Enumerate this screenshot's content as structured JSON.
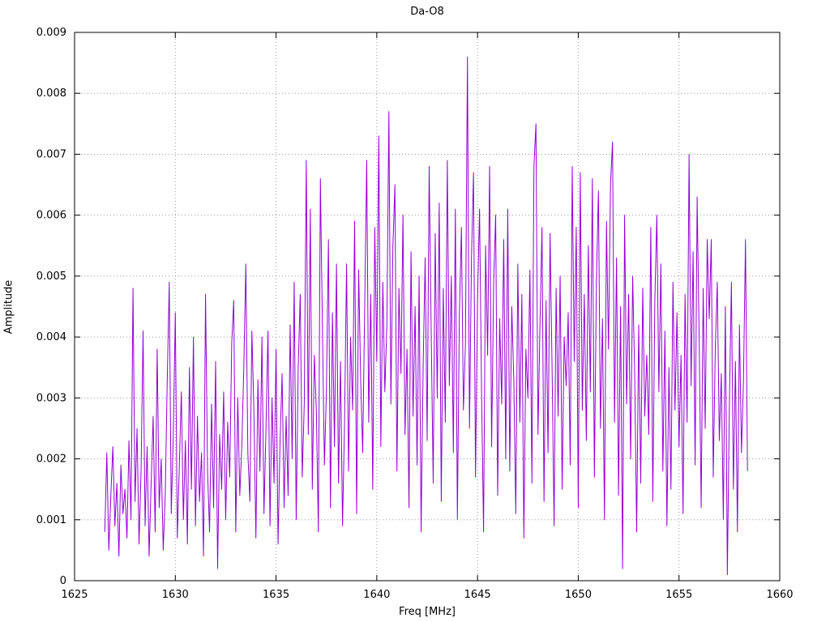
{
  "chart_data": {
    "type": "line",
    "title": "Da-O8",
    "xlabel": "Freq [MHz]",
    "ylabel": "Amplitude",
    "xlim": [
      1625,
      1660
    ],
    "ylim": [
      0,
      0.009
    ],
    "x_ticks": [
      1625,
      1630,
      1635,
      1640,
      1645,
      1650,
      1655,
      1660
    ],
    "x_tick_labels": [
      "1625",
      "1630",
      "1635",
      "1640",
      "1645",
      "1650",
      "1655",
      "1660"
    ],
    "y_ticks": [
      0,
      0.001,
      0.002,
      0.003,
      0.004,
      0.005,
      0.006,
      0.007,
      0.008,
      0.009
    ],
    "y_tick_labels": [
      "0",
      "0.001",
      "0.002",
      "0.003",
      "0.004",
      "0.005",
      "0.006",
      "0.007",
      "0.008",
      "0.009"
    ],
    "grid": true,
    "grid_color": "#9a9a9a",
    "legend_position": "none",
    "series": [
      {
        "name": "Da-O8",
        "color": "#9400D3",
        "x_start": 1626.5,
        "x_step": 0.1,
        "values": [
          0.0008,
          0.0021,
          0.0005,
          0.0014,
          0.0022,
          0.0009,
          0.0016,
          0.0004,
          0.0019,
          0.0011,
          0.0015,
          0.0007,
          0.0023,
          0.001,
          0.0048,
          0.0013,
          0.0025,
          0.0006,
          0.0018,
          0.0041,
          0.0009,
          0.0022,
          0.0004,
          0.0016,
          0.0027,
          0.0008,
          0.0038,
          0.0012,
          0.002,
          0.0005,
          0.0014,
          0.0033,
          0.0049,
          0.0011,
          0.0024,
          0.0044,
          0.0007,
          0.0019,
          0.0031,
          0.001,
          0.0023,
          0.0006,
          0.0035,
          0.0015,
          0.004,
          0.0009,
          0.0027,
          0.0013,
          0.0021,
          0.0004,
          0.0047,
          0.0018,
          0.0008,
          0.0029,
          0.0012,
          0.0036,
          0.0002,
          0.0024,
          0.0015,
          0.0031,
          0.001,
          0.0026,
          0.0017,
          0.0039,
          0.0046,
          0.0008,
          0.003,
          0.0014,
          0.0022,
          0.0035,
          0.0052,
          0.0021,
          0.0013,
          0.0041,
          0.0028,
          0.0007,
          0.0033,
          0.0018,
          0.004,
          0.0011,
          0.0025,
          0.0041,
          0.0009,
          0.003,
          0.0016,
          0.0038,
          0.0006,
          0.0023,
          0.0034,
          0.0012,
          0.0027,
          0.0014,
          0.0042,
          0.002,
          0.0049,
          0.001,
          0.0035,
          0.0047,
          0.0017,
          0.0029,
          0.0069,
          0.0024,
          0.0061,
          0.0015,
          0.0037,
          0.0028,
          0.0008,
          0.0066,
          0.0042,
          0.0019,
          0.0031,
          0.0056,
          0.0012,
          0.0044,
          0.0022,
          0.0052,
          0.0016,
          0.0036,
          0.0009,
          0.0026,
          0.0052,
          0.0018,
          0.004,
          0.0028,
          0.0059,
          0.0011,
          0.0051,
          0.0033,
          0.0021,
          0.0045,
          0.0069,
          0.0026,
          0.0047,
          0.0015,
          0.0058,
          0.0036,
          0.0073,
          0.0022,
          0.0049,
          0.0031,
          0.0042,
          0.0077,
          0.0029,
          0.0055,
          0.0065,
          0.0018,
          0.0048,
          0.0034,
          0.006,
          0.0024,
          0.0038,
          0.0012,
          0.0054,
          0.0027,
          0.0045,
          0.0019,
          0.005,
          0.0008,
          0.0035,
          0.0053,
          0.0023,
          0.0068,
          0.0041,
          0.0016,
          0.0057,
          0.003,
          0.0062,
          0.0013,
          0.0048,
          0.0026,
          0.0069,
          0.0032,
          0.005,
          0.0021,
          0.0061,
          0.001,
          0.0044,
          0.0058,
          0.0028,
          0.0039,
          0.0086,
          0.0025,
          0.0053,
          0.0067,
          0.0017,
          0.0046,
          0.0061,
          0.0031,
          0.0008,
          0.0055,
          0.0037,
          0.0068,
          0.0022,
          0.0049,
          0.006,
          0.0014,
          0.0043,
          0.0029,
          0.0056,
          0.002,
          0.0061,
          0.0018,
          0.0045,
          0.0033,
          0.0011,
          0.0052,
          0.0026,
          0.0047,
          0.0007,
          0.0038,
          0.003,
          0.0051,
          0.0016,
          0.0068,
          0.0075,
          0.0024,
          0.0042,
          0.0058,
          0.0013,
          0.0046,
          0.0021,
          0.0057,
          0.0035,
          0.0009,
          0.0048,
          0.0027,
          0.005,
          0.0015,
          0.004,
          0.0032,
          0.0044,
          0.0019,
          0.0068,
          0.0036,
          0.0058,
          0.0012,
          0.0067,
          0.0028,
          0.0047,
          0.0023,
          0.0055,
          0.0031,
          0.0066,
          0.0017,
          0.0049,
          0.0064,
          0.0025,
          0.0043,
          0.001,
          0.0059,
          0.0038,
          0.0065,
          0.0072,
          0.0026,
          0.0053,
          0.0014,
          0.0045,
          0.0002,
          0.006,
          0.0029,
          0.0047,
          0.002,
          0.005,
          0.0034,
          0.0008,
          0.0042,
          0.0016,
          0.0048,
          0.0027,
          0.0037,
          0.0024,
          0.0058,
          0.0013,
          0.0046,
          0.006,
          0.0031,
          0.0052,
          0.0018,
          0.0041,
          0.0009,
          0.0035,
          0.0015,
          0.0049,
          0.0028,
          0.0044,
          0.0022,
          0.0037,
          0.0011,
          0.0047,
          0.0026,
          0.007,
          0.0032,
          0.0054,
          0.0019,
          0.0063,
          0.004,
          0.0012,
          0.0048,
          0.0025,
          0.0056,
          0.0043,
          0.0056,
          0.0017,
          0.0038,
          0.0049,
          0.0023,
          0.0034,
          0.001,
          0.0045,
          0.0001,
          0.0029,
          0.0049,
          0.0015,
          0.0036,
          0.0008,
          0.0042,
          0.0021,
          0.0033,
          0.0056,
          0.0018
        ]
      }
    ]
  }
}
